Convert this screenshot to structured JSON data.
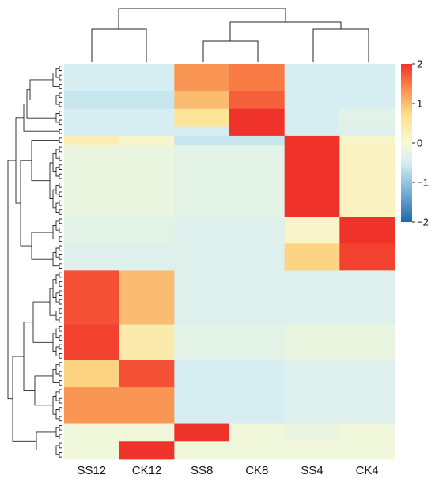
{
  "chart_data": {
    "type": "heatmap",
    "title": "",
    "xlabel": "",
    "ylabel": "",
    "columns": [
      "SS12",
      "CK12",
      "SS8",
      "CK8",
      "SS4",
      "CK4"
    ],
    "color_scale": {
      "min": -2,
      "max": 2,
      "ticks": [
        {
          "value": 2,
          "label": "2"
        },
        {
          "value": 1,
          "label": "1"
        },
        {
          "value": 0,
          "label": "0"
        },
        {
          "value": -1,
          "label": "−1"
        },
        {
          "value": -2,
          "label": "−2"
        }
      ],
      "stops": [
        {
          "value": -2,
          "color": "#2166ac"
        },
        {
          "value": -1,
          "color": "#92c5de"
        },
        {
          "value": -0.5,
          "color": "#d6eef2"
        },
        {
          "value": 0,
          "color": "#f7f9d4"
        },
        {
          "value": 0.7,
          "color": "#fde08e"
        },
        {
          "value": 1.4,
          "color": "#f98a4a"
        },
        {
          "value": 2,
          "color": "#f0332a"
        }
      ]
    },
    "row_blocks": [
      {
        "rows": 3,
        "values": [
          -0.5,
          -0.5,
          1.3,
          1.5,
          -0.5,
          -0.5
        ]
      },
      {
        "rows": 2,
        "values": [
          -0.6,
          -0.6,
          1.0,
          1.7,
          -0.5,
          -0.5
        ]
      },
      {
        "rows": 2,
        "values": [
          -0.5,
          -0.5,
          0.6,
          2.0,
          -0.5,
          -0.3
        ]
      },
      {
        "rows": 1,
        "values": [
          -0.5,
          -0.5,
          -0.5,
          2.0,
          -0.5,
          -0.4
        ]
      },
      {
        "rows": 1,
        "values": [
          0.3,
          0.1,
          -0.6,
          -0.6,
          2.0,
          0.1
        ]
      },
      {
        "rows": 8,
        "values": [
          -0.2,
          -0.2,
          -0.3,
          -0.3,
          2.0,
          0.2
        ]
      },
      {
        "rows": 3,
        "values": [
          -0.3,
          -0.3,
          -0.4,
          -0.4,
          0.1,
          2.0
        ]
      },
      {
        "rows": 3,
        "values": [
          -0.4,
          -0.4,
          -0.4,
          -0.4,
          0.8,
          1.9
        ]
      },
      {
        "rows": 6,
        "values": [
          1.8,
          1.0,
          -0.4,
          -0.4,
          -0.4,
          -0.4
        ]
      },
      {
        "rows": 4,
        "values": [
          1.9,
          0.4,
          -0.3,
          -0.3,
          -0.2,
          -0.2
        ]
      },
      {
        "rows": 3,
        "values": [
          0.8,
          1.8,
          -0.5,
          -0.5,
          -0.4,
          -0.4
        ]
      },
      {
        "rows": 4,
        "values": [
          1.3,
          1.3,
          -0.5,
          -0.5,
          -0.4,
          -0.4
        ]
      },
      {
        "rows": 2,
        "values": [
          -0.1,
          -0.1,
          2.0,
          -0.1,
          -0.2,
          -0.1
        ]
      },
      {
        "rows": 2,
        "values": [
          -0.1,
          2.0,
          -0.1,
          -0.1,
          -0.1,
          -0.1
        ]
      }
    ],
    "column_dendrogram": "((SS12,CK12),((SS8,CK8),(SS4,CK4)))"
  }
}
